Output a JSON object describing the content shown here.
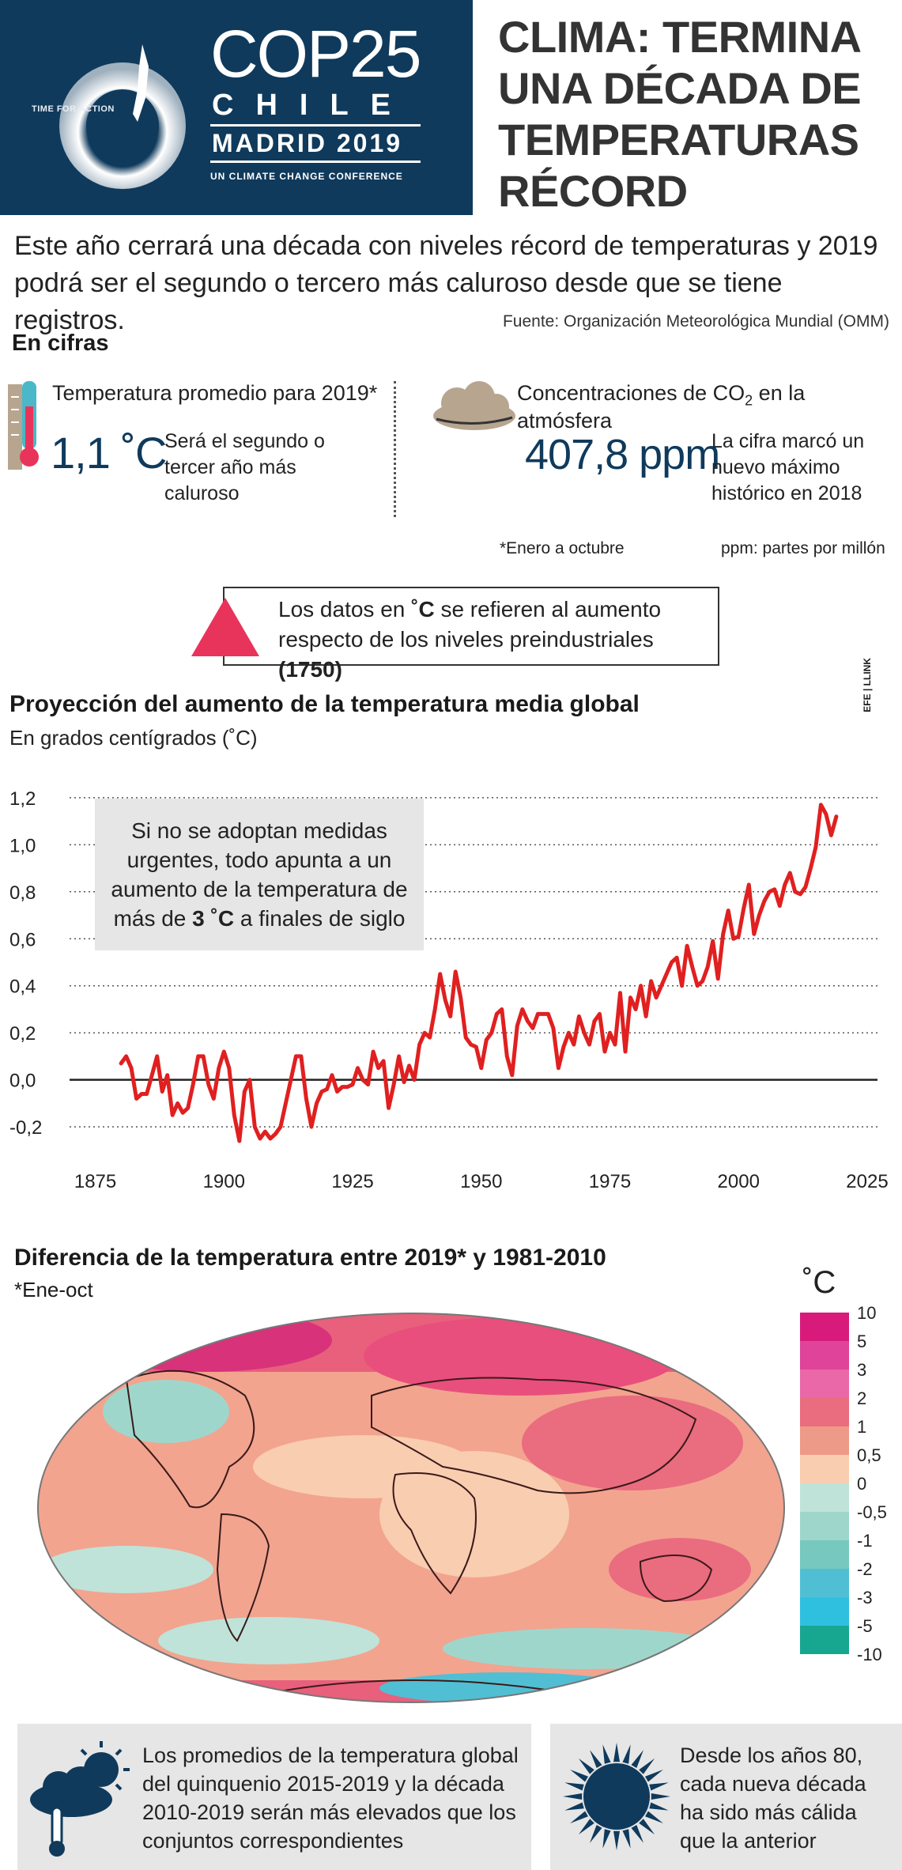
{
  "header": {
    "logo": {
      "tagline": "TIME FOR ACTION",
      "event": "COP25",
      "country": "CHILE",
      "place_year": "MADRID 2019",
      "conference": "UN CLIMATE CHANGE CONFERENCE"
    },
    "title": "CLIMA: TERMINA UNA DÉCADA DE TEMPERATURAS RÉCORD",
    "title_lines": [
      "CLIMA: TERMINA",
      "UNA DÉCADA DE",
      "TEMPERATURAS",
      "RÉCORD"
    ]
  },
  "intro": "Este año cerrará una década con niveles récord de temperaturas y 2019 podrá ser el segundo o tercero más caluroso desde que se tiene registros.",
  "source": "Fuente: Organización Meteorológica Mundial (OMM)",
  "cifras": {
    "heading": "En cifras",
    "temperature": {
      "label": "Temperatura promedio para 2019*",
      "value": "1,1 ˚C",
      "description": "Será el segundo o tercer año más caluroso",
      "footnote": "*Enero a octubre"
    },
    "co2": {
      "label_prefix": "Concentraciones de CO",
      "label_sub": "2",
      "label_suffix": " en la atmósfera",
      "value": "407,8 ppm",
      "description": "La cifra marcó un nuevo máximo histórico en 2018",
      "footnote": "ppm: partes por millón"
    }
  },
  "note": {
    "text_before": "Los datos en ",
    "unit": "˚C",
    "text_after": " se refieren al aumento respecto de los niveles preindustriales ",
    "year": "(1750)",
    "accent_color": "#e8345a"
  },
  "credit": "EFE | LLINK",
  "chart_data": [
    {
      "type": "line",
      "title": "Proyección del aumento de la temperatura media global",
      "subtitle": "En grados centígrados (˚C)",
      "xlabel": "",
      "ylabel": "",
      "xlim": [
        1870,
        2027
      ],
      "ylim": [
        -0.25,
        1.25
      ],
      "x_ticks": [
        "1875",
        "1900",
        "1925",
        "1950",
        "1975",
        "2000",
        "2025"
      ],
      "y_ticks": [
        "-0,2",
        "0,0",
        "0,2",
        "0,4",
        "0,6",
        "0,8",
        "1,0",
        "1,2"
      ],
      "y_tick_values": [
        -0.2,
        0,
        0.2,
        0.4,
        0.6,
        0.8,
        1.0,
        1.2
      ],
      "grid": "horizontal dotted",
      "line_color": "#e02020",
      "callout": {
        "line1": "Si no se adoptan medidas",
        "line2": "urgentes, todo apunta a un",
        "line3": "aumento de la temperatura de",
        "line4_prefix": "más de ",
        "line4_bold": "3 ˚C",
        "line4_suffix": " a finales de siglo"
      },
      "series": [
        {
          "x": [
            1880,
            1881,
            1882,
            1883,
            1884,
            1885,
            1886,
            1887,
            1888,
            1889,
            1890,
            1891,
            1892,
            1893,
            1894,
            1895,
            1896,
            1897,
            1898,
            1899,
            1900,
            1901,
            1902,
            1903,
            1904,
            1905,
            1906,
            1907,
            1908,
            1909,
            1910,
            1911,
            1912,
            1913,
            1914,
            1915,
            1916,
            1917,
            1918,
            1919,
            1920,
            1921,
            1922,
            1923,
            1924,
            1925,
            1926,
            1927,
            1928,
            1929,
            1930,
            1931,
            1932,
            1933,
            1934,
            1935,
            1936,
            1937,
            1938,
            1939,
            1940,
            1941,
            1942,
            1943,
            1944,
            1945,
            1946,
            1947,
            1948,
            1949,
            1950,
            1951,
            1952,
            1953,
            1954,
            1955,
            1956,
            1957,
            1958,
            1959,
            1960,
            1961,
            1962,
            1963,
            1964,
            1965,
            1966,
            1967,
            1968,
            1969,
            1970,
            1971,
            1972,
            1973,
            1974,
            1975,
            1976,
            1977,
            1978,
            1979,
            1980,
            1981,
            1982,
            1983,
            1984,
            1985,
            1986,
            1987,
            1988,
            1989,
            1990,
            1991,
            1992,
            1993,
            1994,
            1995,
            1996,
            1997,
            1998,
            1999,
            2000,
            2001,
            2002,
            2003,
            2004,
            2005,
            2006,
            2007,
            2008,
            2009,
            2010,
            2011,
            2012,
            2013,
            2014,
            2015,
            2016,
            2017,
            2018,
            2019
          ],
          "y": [
            0.07,
            0.1,
            0.05,
            -0.08,
            -0.06,
            -0.06,
            0.02,
            0.1,
            -0.05,
            0.02,
            -0.15,
            -0.1,
            -0.14,
            -0.12,
            -0.02,
            0.1,
            0.1,
            -0.02,
            -0.08,
            0.05,
            0.12,
            0.05,
            -0.15,
            -0.26,
            -0.05,
            0.0,
            -0.2,
            -0.25,
            -0.22,
            -0.25,
            -0.23,
            -0.2,
            -0.1,
            0.0,
            0.1,
            0.1,
            -0.08,
            -0.2,
            -0.1,
            -0.05,
            -0.04,
            0.02,
            -0.05,
            -0.03,
            -0.03,
            -0.02,
            0.05,
            0.0,
            -0.02,
            0.12,
            0.05,
            0.08,
            -0.12,
            -0.02,
            0.1,
            -0.01,
            0.06,
            0.0,
            0.15,
            0.2,
            0.18,
            0.3,
            0.45,
            0.34,
            0.27,
            0.46,
            0.35,
            0.18,
            0.15,
            0.14,
            0.05,
            0.17,
            0.2,
            0.28,
            0.3,
            0.1,
            0.02,
            0.23,
            0.3,
            0.25,
            0.22,
            0.28,
            0.28,
            0.28,
            0.22,
            0.05,
            0.14,
            0.2,
            0.15,
            0.27,
            0.2,
            0.15,
            0.25,
            0.28,
            0.12,
            0.2,
            0.15,
            0.37,
            0.12,
            0.35,
            0.3,
            0.4,
            0.27,
            0.42,
            0.35,
            0.4,
            0.45,
            0.5,
            0.52,
            0.4,
            0.57,
            0.48,
            0.4,
            0.42,
            0.48,
            0.59,
            0.43,
            0.62,
            0.72,
            0.6,
            0.61,
            0.73,
            0.83,
            0.62,
            0.7,
            0.76,
            0.8,
            0.81,
            0.74,
            0.83,
            0.88,
            0.8,
            0.79,
            0.82,
            0.9,
            0.99,
            1.17,
            1.13,
            1.04,
            1.12
          ]
        }
      ]
    },
    {
      "type": "heatmap",
      "title": "Diferencia de la temperatura entre 2019* y 1981-2010",
      "subtitle": "*Ene-oct",
      "legend_unit": "˚C",
      "legend_labels": [
        "10",
        "5",
        "3",
        "2",
        "1",
        "0,5",
        "0",
        "-0,5",
        "-1",
        "-2",
        "-3",
        "-5",
        "-10"
      ],
      "legend_colors": [
        "#d81b7b",
        "#e0439a",
        "#ea67a8",
        "#ea6c7f",
        "#ee9a88",
        "#f9cdb0",
        "#bfe3d8",
        "#9fd6cc",
        "#77c8be",
        "#50bfd4",
        "#2fc0e0",
        "#17a791"
      ]
    }
  ],
  "bottom": {
    "box1": "Los promedios de la temperatura global del quinquenio 2015-2019 y la década 2010-2019 serán más elevados que los conjuntos correspondientes",
    "box2": "Desde los años 80, cada nueva década ha sido más cálida que la anterior"
  }
}
